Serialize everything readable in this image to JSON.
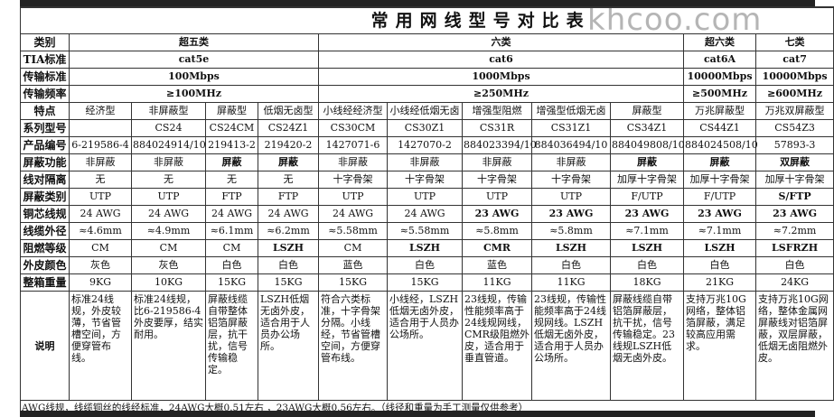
{
  "title": "常用网线型号对比表",
  "watermark": "khcoo.com",
  "groups": {
    "label_category": "类别",
    "label_tia": "TIA标准",
    "label_speed": "传输标准",
    "label_freq": "传输频率",
    "items": [
      {
        "category": "超五类",
        "tia": "cat5e",
        "speed": "100Mbps",
        "freq": "≥100MHz",
        "span": 4
      },
      {
        "category": "六类",
        "tia": "cat6",
        "speed": "1000Mbps",
        "freq": "≥250MHz",
        "span": 5
      },
      {
        "category": "超六类",
        "tia": "cat6A",
        "speed": "10000Mbps",
        "freq": "≥500MHz",
        "span": 1
      },
      {
        "category": "七类",
        "tia": "cat7",
        "speed": "10000Mbps",
        "freq": "≥600MHz",
        "span": 1
      }
    ]
  },
  "rows": [
    {
      "label": "特点",
      "values": [
        "经济型",
        "非屏蔽型",
        "屏蔽型",
        "低烟无卤型",
        "小线经经济型",
        "小线经低烟无卤",
        "增强型阻燃",
        "增强型低烟无卤",
        "屏蔽型",
        "万兆屏蔽型",
        "万兆双屏蔽型"
      ]
    },
    {
      "label": "系列型号",
      "values": [
        "",
        "CS24",
        "CS24CM",
        "CS24Z1",
        "CS30CM",
        "CS30Z1",
        "CS31R",
        "CS31Z1",
        "CS34Z1",
        "CS44Z1",
        "CS54Z3"
      ]
    },
    {
      "label": "产品编号",
      "values": [
        "6-219586-4",
        "884024914/10",
        "219413-2",
        "219420-2",
        "1427071-6",
        "1427070-2",
        "884023394/10",
        "884036494/10",
        "884049808/10",
        "884024508/10",
        "57893-3"
      ]
    },
    {
      "label": "屏蔽功能",
      "values": [
        "非屏蔽",
        "非屏蔽",
        "屏蔽",
        "屏蔽",
        "非屏蔽",
        "非屏蔽",
        "非屏蔽",
        "非屏蔽",
        "屏蔽",
        "屏蔽",
        "双屏蔽"
      ]
    },
    {
      "label": "线对隔离",
      "values": [
        "无",
        "无",
        "无",
        "无",
        "十字骨架",
        "十字骨架",
        "十字骨架",
        "十字骨架",
        "加厚十字骨架",
        "加厚十字骨架",
        "加厚十字骨架"
      ]
    },
    {
      "label": "屏蔽类别",
      "values": [
        "UTP",
        "UTP",
        "FTP",
        "FTP",
        "UTP",
        "UTP",
        "UTP",
        "UTP",
        "F/UTP",
        "F/UTP",
        "S/FTP"
      ]
    },
    {
      "label": "铜芯线规",
      "values": [
        "24 AWG",
        "24 AWG",
        "24 AWG",
        "24 AWG",
        "24 AWG",
        "24 AWG",
        "23 AWG",
        "23 AWG",
        "23 AWG",
        "23 AWG",
        "23 AWG"
      ]
    },
    {
      "label": "线缆外径",
      "values": [
        "≈4.6mm",
        "≈4.9mm",
        "≈6.1mm",
        "≈6.2mm",
        "≈5.58mm",
        "≈5.58mm",
        "≈5.8mm",
        "≈5.8mm",
        "≈7.1mm",
        "≈7.1mm",
        "≈7.2mm"
      ]
    },
    {
      "label": "阻燃等级",
      "values": [
        "CM",
        "CM",
        "CM",
        "LSZH",
        "CM",
        "LSZH",
        "CMR",
        "LSZH",
        "LSZH",
        "LSZH",
        "LSFRZH"
      ]
    },
    {
      "label": "外皮颜色",
      "values": [
        "灰色",
        "灰色",
        "白色",
        "白色",
        "蓝色",
        "白色",
        "蓝色",
        "白色",
        "白色",
        "白色",
        "白色"
      ]
    },
    {
      "label": "整箱重量",
      "values": [
        "9KG",
        "10KG",
        "15KG",
        "15KG",
        "15KG",
        "15KG",
        "11KG",
        "11KG",
        "18KG",
        "21KG",
        "24KG"
      ]
    }
  ],
  "bold_values": [
    "屏蔽",
    "双屏蔽",
    "S/FTP",
    "23 AWG",
    "LSZH",
    "CMR",
    "LSFRZH"
  ],
  "description": {
    "label": "说明",
    "values": [
      "标准24线规，外皮较薄，节省管槽空间，方便穿管布线。",
      "标准24线规，比6-219586-4外皮要厚，结实耐用。",
      "屏蔽线缆自带整体铝箔屏蔽层，抗干扰，信号传输稳定。",
      "LSZH低烟无卤外皮，适合用于人员办公场所。",
      "符合六类标准，十字骨架分隔。小线经，节省管槽空间，方便穿管布线。",
      "小线经，LSZH低烟无卤外皮，适合用于人员办公场所。",
      "23线规，传输性能频率高于24线规网线，CMR级阻燃外皮，适合用于垂直管道。",
      "23线规，传输性能频率高于24线规网线。LSZH低烟无卤外皮，适合用于人员办公场所。",
      "屏蔽线缆自带铝箔屏蔽层，抗干扰，信号传输稳定。23线规LSZH低烟无卤外皮。",
      "支持万兆10G网络，整体铝箔屏蔽，满足较高应用需求。",
      "支持万兆10G网络，整体金属网屏蔽线对铝箔屏蔽，双层屏蔽，低烟无卤阻燃外皮。"
    ]
  },
  "footer": "AWG线规，线缆铜丝的线经标准，24AWG大概0.51左右 ，23AWG大概0.56左右。（线径和重量为手工测量仅供参考）"
}
